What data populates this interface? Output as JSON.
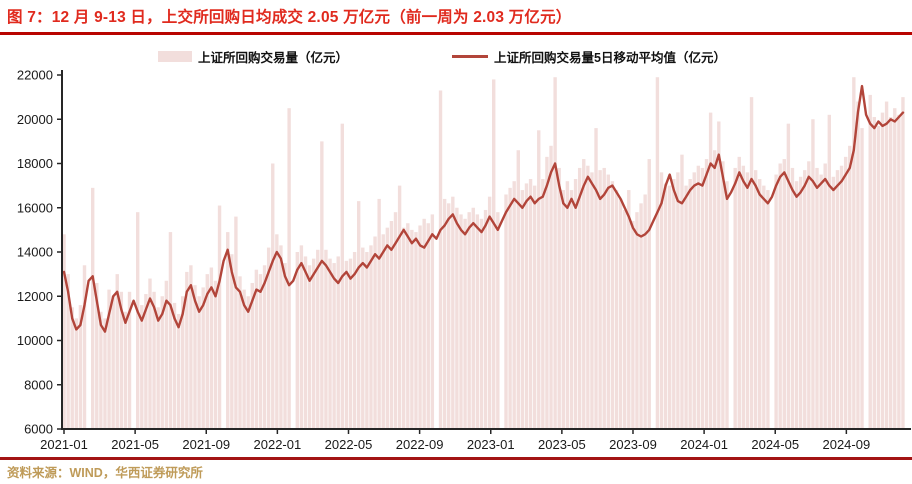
{
  "title": "图 7：12 月 9-13 日，上交所回购日均成交 2.05 万亿元（前一周为 2.03 万亿元）",
  "source_note": "资料来源：WIND，华西证券研究所",
  "legend": {
    "bars_label": "上证所回购交易量（亿元）",
    "ma_label": "上证所回购交易量5日移动平均值（亿元）"
  },
  "colors": {
    "title_red": "#e02a1e",
    "title_divider": "#b80400",
    "footer_divider": "#a31414",
    "source_tan": "#bf9b59",
    "bar_pink": "#f2dedc",
    "line_brick": "#b2453a",
    "axis_black": "#262626"
  },
  "chart_data": {
    "type": "bar",
    "note": "daily repo volume shown as bars with 5-day moving average line; values sampled weekly, unit 亿元",
    "ylim": [
      6000,
      22000
    ],
    "y_ticks": [
      6000,
      8000,
      10000,
      12000,
      14000,
      16000,
      18000,
      20000,
      22000
    ],
    "x_tick_labels": [
      "2021-01",
      "2021-05",
      "2021-09",
      "2022-01",
      "2022-05",
      "2022-09",
      "2023-01",
      "2023-05",
      "2023-09",
      "2024-01",
      "2024-05",
      "2024-09"
    ],
    "grid": false,
    "legend_position": "top",
    "series": [
      {
        "name": "上证所回购交易量（亿元）",
        "type": "bar",
        "values": [
          14800,
          13000,
          11500,
          11000,
          11600,
          13400,
          0,
          16900,
          12600,
          11300,
          11000,
          12300,
          12000,
          13000,
          12200,
          11300,
          12200,
          0,
          15800,
          11600,
          12100,
          12800,
          12200,
          11500,
          12000,
          12700,
          14900,
          11700,
          11200,
          12000,
          13100,
          13400,
          12500,
          12000,
          12400,
          13000,
          13300,
          12700,
          16100,
          0,
          14900,
          13900,
          15600,
          12900,
          12300,
          12000,
          12600,
          13200,
          13000,
          13400,
          14200,
          18000,
          14800,
          14300,
          13500,
          20500,
          0,
          14000,
          14300,
          13800,
          13400,
          13700,
          14100,
          19000,
          14100,
          13700,
          13500,
          13800,
          19800,
          13600,
          13700,
          14000,
          16300,
          14200,
          14000,
          14300,
          14700,
          16400,
          14800,
          15100,
          15400,
          15800,
          17000,
          15100,
          15300,
          15000,
          14900,
          15200,
          15500,
          15300,
          15700,
          0,
          21300,
          16400,
          16200,
          16500,
          16000,
          15700,
          15500,
          15800,
          16000,
          15700,
          15500,
          15900,
          16500,
          21800,
          15800,
          0,
          16600,
          16900,
          17200,
          18600,
          16800,
          17100,
          17300,
          17000,
          19500,
          17300,
          18300,
          18800,
          21900,
          17800,
          16800,
          17200,
          16800,
          17300,
          17800,
          18200,
          17900,
          17600,
          19600,
          17700,
          17800,
          17500,
          17200,
          16800,
          16400,
          15900,
          16800,
          15400,
          15800,
          16200,
          16600,
          18200,
          0,
          21900,
          17600,
          17100,
          17000,
          17300,
          17600,
          18400,
          17000,
          17300,
          17600,
          17900,
          17800,
          18200,
          20300,
          18600,
          19900,
          18100,
          17200,
          0,
          17800,
          18300,
          17900,
          17600,
          21000,
          17700,
          17300,
          17000,
          16800,
          0,
          17500,
          18000,
          18200,
          19800,
          17800,
          17200,
          17400,
          17700,
          18100,
          20000,
          17800,
          17500,
          18000,
          20200,
          17400,
          17700,
          17900,
          18300,
          18800,
          21900,
          20800,
          19600,
          0,
          21100,
          20100,
          19700,
          20300,
          20800,
          20100,
          20500,
          20200,
          21000
        ]
      },
      {
        "name": "上证所回购交易量5日移动平均值（亿元）",
        "type": "line",
        "values": [
          13100,
          12200,
          11000,
          10500,
          10700,
          11600,
          12700,
          12900,
          11800,
          10700,
          10400,
          11200,
          12000,
          12200,
          11400,
          10800,
          11300,
          11800,
          11300,
          10900,
          11400,
          11900,
          11500,
          10900,
          11200,
          11800,
          11600,
          11000,
          10600,
          11200,
          12200,
          12500,
          11800,
          11300,
          11600,
          12100,
          12400,
          12000,
          12700,
          13600,
          14100,
          13100,
          12400,
          12200,
          11600,
          11300,
          11800,
          12300,
          12200,
          12600,
          13100,
          13600,
          14000,
          13700,
          12900,
          12500,
          12700,
          13200,
          13500,
          13100,
          12700,
          13000,
          13300,
          13600,
          13400,
          13100,
          12800,
          12600,
          12900,
          13100,
          12800,
          13000,
          13300,
          13500,
          13300,
          13600,
          13900,
          13700,
          14000,
          14300,
          14100,
          14400,
          14700,
          15000,
          14700,
          14400,
          14600,
          14300,
          14200,
          14500,
          14800,
          14600,
          15000,
          15200,
          15500,
          15700,
          15300,
          15000,
          14800,
          15100,
          15300,
          15100,
          14900,
          15200,
          15600,
          15300,
          15000,
          15400,
          15800,
          16100,
          16400,
          16200,
          16000,
          16300,
          16500,
          16200,
          16400,
          16500,
          17000,
          17600,
          18000,
          17000,
          16200,
          16000,
          16400,
          16000,
          16500,
          17000,
          17400,
          17100,
          16800,
          16400,
          16600,
          16900,
          17000,
          16700,
          16400,
          16000,
          15600,
          15100,
          14800,
          14700,
          14800,
          15000,
          15400,
          15800,
          16200,
          17000,
          17500,
          16800,
          16300,
          16200,
          16500,
          16800,
          17000,
          17100,
          17000,
          17500,
          18000,
          17800,
          18400,
          17400,
          16400,
          16700,
          17100,
          17600,
          17200,
          16900,
          17300,
          17000,
          16600,
          16400,
          16200,
          16500,
          17000,
          17400,
          17600,
          17200,
          16800,
          16500,
          16700,
          17000,
          17400,
          17200,
          16900,
          17100,
          17300,
          17000,
          16800,
          17000,
          17200,
          17500,
          17800,
          18600,
          20300,
          21500,
          20200,
          19800,
          19600,
          19900,
          19700,
          19800,
          20000,
          19900,
          20100,
          20300
        ]
      }
    ]
  }
}
